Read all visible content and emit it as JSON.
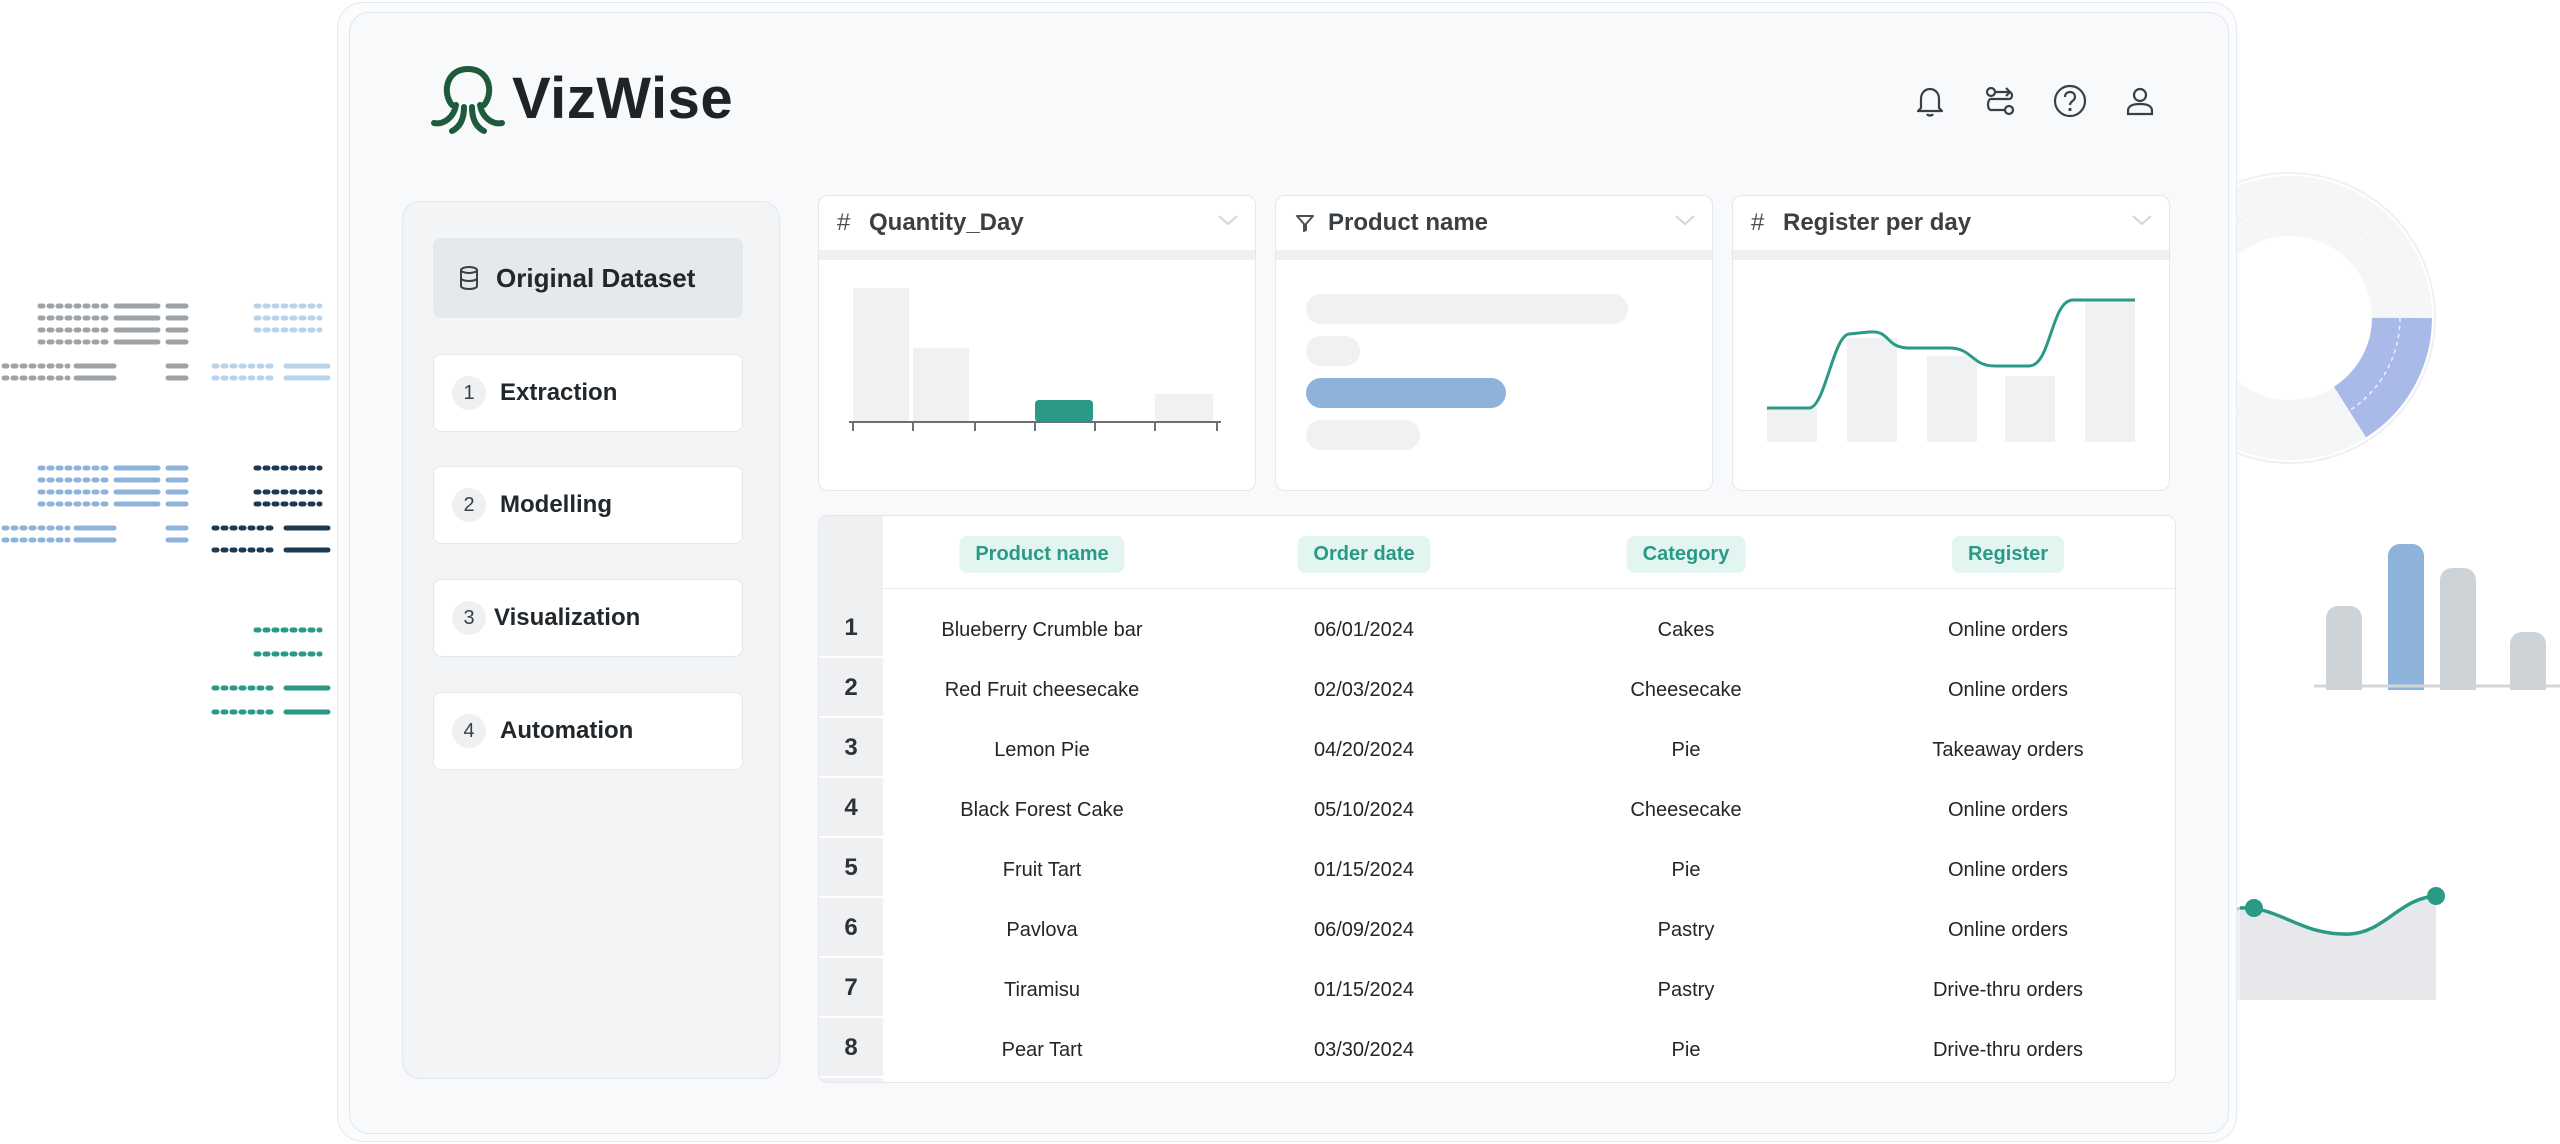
{
  "app": {
    "name": "VizWise"
  },
  "colors": {
    "accent": "#2a9a86",
    "accent_light": "#e2f5f0",
    "blue": "#8db3db",
    "periwinkle": "#a9bae8",
    "navy": "#1e3a52"
  },
  "header": {
    "icons": [
      "bell-icon",
      "workflow-icon",
      "help-icon",
      "user-icon"
    ]
  },
  "sidebar": {
    "dataset_label": "Original Dataset",
    "steps": [
      {
        "num": "1",
        "label": "Extraction"
      },
      {
        "num": "2",
        "label": "Modelling"
      },
      {
        "num": "3",
        "label": "Visualization"
      },
      {
        "num": "4",
        "label": "Automation"
      }
    ]
  },
  "cards": [
    {
      "icon": "#",
      "title": "Quantity_Day"
    },
    {
      "icon": "∇",
      "title": "Product name"
    },
    {
      "icon": "#",
      "title": "Register per day"
    }
  ],
  "table": {
    "columns": [
      "Product name",
      "Order date",
      "Category",
      "Register"
    ],
    "rows": [
      {
        "idx": "1",
        "product": "Blueberry Crumble bar",
        "date": "06/01/2024",
        "category": "Cakes",
        "register": "Online orders"
      },
      {
        "idx": "2",
        "product": "Red Fruit cheesecake",
        "date": "02/03/2024",
        "category": "Cheesecake",
        "register": "Online orders"
      },
      {
        "idx": "3",
        "product": "Lemon Pie",
        "date": "04/20/2024",
        "category": "Pie",
        "register": "Takeaway orders"
      },
      {
        "idx": "4",
        "product": "Black Forest Cake",
        "date": "05/10/2024",
        "category": "Cheesecake",
        "register": "Online orders"
      },
      {
        "idx": "5",
        "product": "Fruit Tart",
        "date": "01/15/2024",
        "category": "Pie",
        "register": "Online orders"
      },
      {
        "idx": "6",
        "product": "Pavlova",
        "date": "06/09/2024",
        "category": "Pastry",
        "register": "Online orders"
      },
      {
        "idx": "7",
        "product": "Tiramisu",
        "date": "01/15/2024",
        "category": "Pastry",
        "register": "Drive-thru orders"
      },
      {
        "idx": "8",
        "product": "Pear Tart",
        "date": "03/30/2024",
        "category": "Pie",
        "register": "Drive-thru orders"
      }
    ]
  }
}
